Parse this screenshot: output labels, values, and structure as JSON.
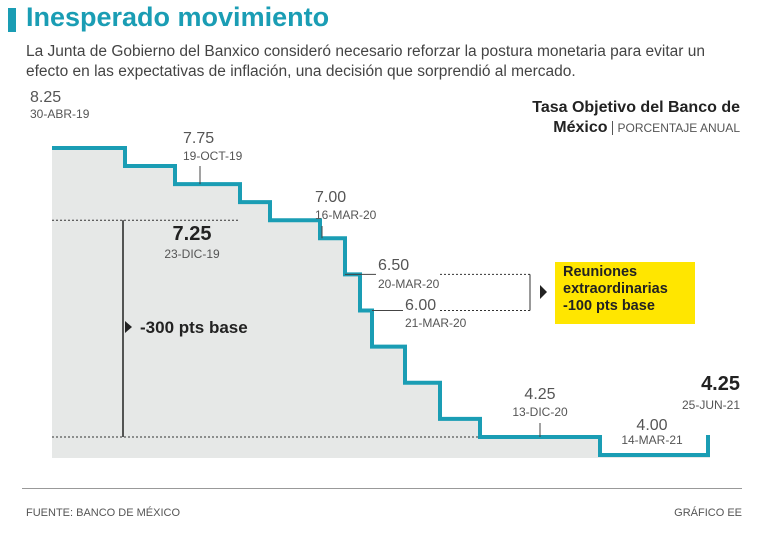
{
  "chart_data": {
    "type": "step",
    "title": "Inesperado movimiento",
    "subtitle": "La Junta de Gobierno del Banxico consideró necesario reforzar la postura monetaria para evitar un efecto en las expectativas de inflación, una decisión que sorprendió al mercado.",
    "chart_title": "Tasa Objetivo del Banco de México",
    "unit": "PORCENTAJE ANUAL",
    "categories": [
      "30-ABR-19",
      null,
      "19-OCT-19",
      null,
      "23-DIC-19",
      "16-MAR-20",
      "20-MAR-20",
      "21-MAR-20",
      null,
      null,
      null,
      "13-DIC-20",
      "14-MAR-21",
      "25-JUN-21"
    ],
    "series": [
      {
        "color": "#1a9db4",
        "values": [
          8.25,
          8.0,
          7.75,
          7.5,
          7.25,
          7.0,
          6.5,
          6.0,
          5.5,
          5.0,
          4.5,
          4.25,
          4.0,
          4.25
        ],
        "value_labels": [
          "8.25",
          null,
          "7.75",
          null,
          "7.25",
          "7.00",
          "6.50",
          "6.00",
          null,
          null,
          null,
          "4.25",
          "4.00",
          "4.25"
        ]
      }
    ],
    "ylim": [
      4,
      8.25
    ],
    "annotations": [
      "-300 pts base",
      "Reuniones extraordinarias -100 pts base"
    ],
    "source": "FUENTE: BANCO DE MÉXICO",
    "credit": "GRÁFICO EE"
  }
}
